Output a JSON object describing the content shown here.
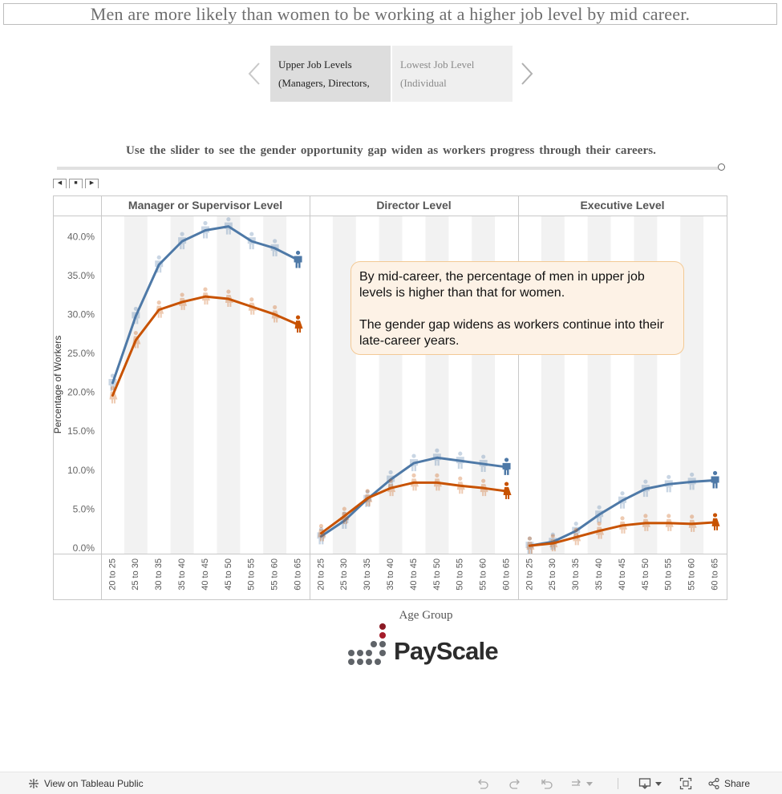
{
  "title": "Men are more likely than women to be working at a higher job level by mid career.",
  "story": {
    "points": [
      {
        "line1": "Upper Job Levels",
        "line2": "(Managers, Directors,"
      },
      {
        "line1": "Lowest Job Level",
        "line2": "(Individual"
      }
    ],
    "prev_icon": "chevron-left-icon",
    "next_icon": "chevron-right-icon"
  },
  "instruction": "Use the slider to see the gender opportunity gap widen as workers progress through their careers.",
  "slider": {
    "value_fraction": 1.0
  },
  "tooltip": {
    "p1": "By mid-career, the percentage of men in upper job levels is higher than that for women.",
    "p2": "The gender gap widens as workers continue into their late-career years."
  },
  "logo": {
    "text": "PayScale"
  },
  "footer": {
    "view_label": "View on Tableau Public",
    "share_label": "Share"
  },
  "colors": {
    "men": "#4e79a7",
    "women": "#c85200",
    "band": "#f2f2f2"
  },
  "chart_data": {
    "type": "line",
    "ylabel": "Percentage of Workers",
    "xlabel": "Age Group",
    "ylim": [
      0,
      42.5
    ],
    "yticks": [
      0,
      5,
      10,
      15,
      20,
      25,
      30,
      35,
      40
    ],
    "tick_format": "0.0%",
    "categories": [
      "20 to 25",
      "25 to 30",
      "30 to 35",
      "35 to 40",
      "40 to 45",
      "45 to 50",
      "50 to 55",
      "55 to 60",
      "60 to 65"
    ],
    "panels": [
      {
        "name": "Manager or Supervisor Level",
        "series": [
          {
            "key": "men",
            "values": [
              21.2,
              29.8,
              36.4,
              39.4,
              40.8,
              41.3,
              39.4,
              38.5,
              37.0
            ]
          },
          {
            "key": "women",
            "values": [
              19.6,
              26.7,
              30.6,
              31.6,
              32.3,
              32.0,
              31.0,
              30.0,
              28.7
            ]
          }
        ]
      },
      {
        "name": "Director Level",
        "series": [
          {
            "key": "men",
            "values": [
              1.5,
              3.5,
              6.3,
              8.8,
              10.9,
              11.6,
              11.2,
              10.8,
              10.4
            ]
          },
          {
            "key": "women",
            "values": [
              1.9,
              4.1,
              6.4,
              7.7,
              8.4,
              8.4,
              8.0,
              7.7,
              7.3
            ]
          }
        ]
      },
      {
        "name": "Executive Level",
        "series": [
          {
            "key": "men",
            "values": [
              0.3,
              0.8,
              2.2,
              4.3,
              6.1,
              7.6,
              8.2,
              8.5,
              8.7
            ]
          },
          {
            "key": "women",
            "values": [
              0.3,
              0.6,
              1.4,
              2.2,
              2.9,
              3.2,
              3.2,
              3.1,
              3.3
            ]
          }
        ]
      }
    ]
  }
}
